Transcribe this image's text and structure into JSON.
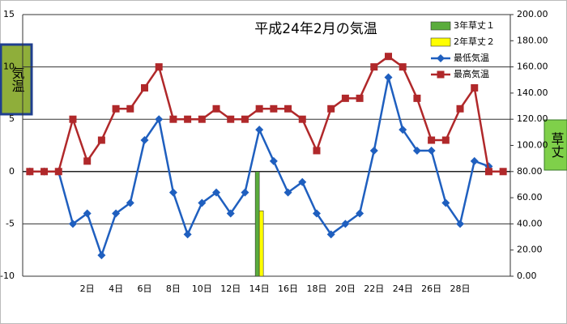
{
  "chart_data": {
    "type": "line",
    "title": "平成24年2月の気温",
    "y_label": "気温",
    "y2_label": "草丈",
    "categories": [
      null,
      null,
      null,
      null,
      "2日",
      null,
      "4日",
      null,
      "6日",
      null,
      "8日",
      null,
      "10日",
      null,
      "12日",
      null,
      "14日",
      null,
      "16日",
      null,
      "18日",
      null,
      "20日",
      null,
      "22日",
      null,
      "24日",
      null,
      "26日",
      null,
      "28日",
      null,
      null,
      null
    ],
    "series": [
      {
        "name": "3年草丈１",
        "type": "bar",
        "axis": "y2",
        "color": "#5aac3c",
        "values": [
          null,
          null,
          null,
          null,
          null,
          null,
          null,
          null,
          null,
          null,
          null,
          null,
          null,
          null,
          null,
          null,
          80,
          null,
          null,
          null,
          null,
          null,
          null,
          null,
          null,
          null,
          null,
          null,
          null,
          null,
          null,
          null,
          null,
          null
        ]
      },
      {
        "name": "2年草丈２",
        "type": "bar",
        "axis": "y2",
        "color": "#ffff00",
        "values": [
          null,
          null,
          null,
          null,
          null,
          null,
          null,
          null,
          null,
          null,
          null,
          null,
          null,
          null,
          null,
          null,
          50,
          null,
          null,
          null,
          null,
          null,
          null,
          null,
          null,
          null,
          null,
          null,
          null,
          null,
          null,
          null,
          null,
          null
        ]
      },
      {
        "name": "最低気温",
        "type": "line",
        "marker": "diamond",
        "color": "#1f5fbf",
        "values": [
          0,
          0,
          0,
          -5,
          -4,
          -8,
          -4,
          -3,
          3,
          5,
          -2,
          -6,
          -3,
          -2,
          -4,
          -2,
          4,
          1,
          -2,
          -1,
          -4,
          -6,
          -5,
          -4,
          2,
          9,
          4,
          2,
          2,
          -3,
          -5,
          1,
          0.5,
          null
        ]
      },
      {
        "name": "最高気温",
        "type": "line",
        "marker": "square",
        "color": "#b0282a",
        "values": [
          0,
          0,
          0,
          5,
          1,
          3,
          6,
          6,
          8,
          10,
          5,
          5,
          5,
          6,
          5,
          5,
          6,
          6,
          6,
          5,
          2,
          6,
          7,
          7,
          10,
          11,
          10,
          7,
          3,
          3,
          6,
          8,
          0,
          0
        ]
      }
    ],
    "ylim": [
      -10,
      15
    ],
    "yticks": [
      -10,
      -5,
      0,
      5,
      10,
      15
    ],
    "y2lim": [
      0,
      200
    ],
    "y2ticks": [
      {
        "value": 0,
        "label": "0.00"
      },
      {
        "value": 20,
        "label": "20.00"
      },
      {
        "value": 40,
        "label": "40.00"
      },
      {
        "value": 60,
        "label": "60.00"
      },
      {
        "value": 80,
        "label": "80.00"
      },
      {
        "value": 100,
        "label": "100.00"
      },
      {
        "value": 120,
        "label": "120.00"
      },
      {
        "value": 140,
        "label": "140.00"
      },
      {
        "value": 160,
        "label": "160.00"
      },
      {
        "value": 180,
        "label": "180.00"
      },
      {
        "value": 200,
        "label": "200.00"
      }
    ],
    "grid": true,
    "legend": "upper right"
  }
}
